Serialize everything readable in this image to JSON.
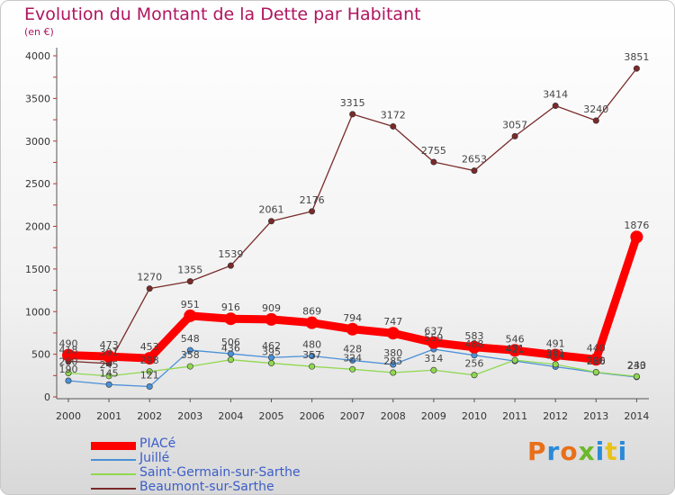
{
  "header": {
    "title": "Evolution du Montant de la Dette par Habitant",
    "subtitle": "(en €)"
  },
  "logo": {
    "text": "Proxiti"
  },
  "chart_data": {
    "type": "line",
    "title": "Evolution du Montant de la Dette par Habitant",
    "ylabel": "(en €)",
    "xlabel": "",
    "ylim": [
      0,
      4000
    ],
    "yticks": [
      0,
      500,
      1000,
      1500,
      2000,
      2500,
      3000,
      3500,
      4000
    ],
    "grid": false,
    "legend_position": "bottom-left",
    "categories": [
      "2000",
      "2001",
      "2002",
      "2003",
      "2004",
      "2005",
      "2006",
      "2007",
      "2008",
      "2009",
      "2010",
      "2011",
      "2012",
      "2013",
      "2014"
    ],
    "series": [
      {
        "name": "PIACé",
        "color": "#ff0000",
        "emphasis": true,
        "values": [
          490,
          473,
          453,
          951,
          916,
          909,
          869,
          794,
          747,
          637,
          583,
          546,
          491,
          440,
          1876
        ]
      },
      {
        "name": "Juillé",
        "color": "#4a90d9",
        "values": [
          190,
          145,
          121,
          548,
          506,
          462,
          480,
          428,
          380,
          559,
          488,
          421,
          354,
          286,
          233
        ]
      },
      {
        "name": "Saint-Germain-sur-Sarthe",
        "color": "#90d850",
        "values": [
          280,
          245,
          298,
          358,
          436,
          395,
          357,
          324,
          285,
          314,
          256,
          431,
          381,
          290,
          240
        ]
      },
      {
        "name": "Beaumont-sur-Sarthe",
        "color": "#7a2a2a",
        "values": [
          418,
          391,
          1270,
          1355,
          1539,
          2061,
          2176,
          3315,
          3172,
          2755,
          2653,
          3057,
          3414,
          3240,
          3851
        ]
      }
    ]
  }
}
